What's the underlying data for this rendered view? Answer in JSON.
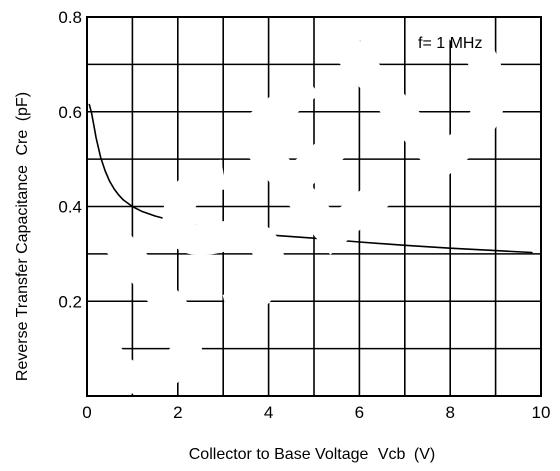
{
  "chart_data": {
    "type": "line",
    "title": "",
    "xlabel": "Collector to Base Voltage",
    "xlabel_symbol": "Vcb",
    "xlabel_unit": "(V)",
    "ylabel": "Reverse Transfer Capacitance",
    "ylabel_symbol": "Cre",
    "ylabel_unit": "(pF)",
    "xlim": [
      0,
      10
    ],
    "ylim": [
      0,
      0.8
    ],
    "grid": true,
    "x_gridlines_step": 1,
    "y_gridlines_step": 0.1,
    "x_ticks": [
      "0",
      "2",
      "4",
      "6",
      "8",
      "10"
    ],
    "x_tick_values": [
      0,
      2,
      4,
      6,
      8,
      10
    ],
    "y_ticks": [
      "0.2",
      "0.4",
      "0.6",
      "0.8"
    ],
    "y_tick_values": [
      0.2,
      0.4,
      0.6,
      0.8
    ],
    "annotations": [
      {
        "text": "f= 1 MHz"
      }
    ],
    "watermark": {
      "text": "USED",
      "color": "#ffffff"
    },
    "series": [
      {
        "color": "#000000",
        "x": [
          0.05,
          0.1,
          0.15,
          0.2,
          0.3,
          0.4,
          0.5,
          0.6,
          0.7,
          0.8,
          1.0,
          1.2,
          1.5,
          2.0,
          2.5,
          3.0,
          3.5,
          4.0,
          5.0,
          6.0,
          7.0,
          8.0,
          9.0,
          9.8
        ],
        "y": [
          0.615,
          0.598,
          0.572,
          0.545,
          0.504,
          0.475,
          0.453,
          0.437,
          0.424,
          0.414,
          0.4,
          0.39,
          0.38,
          0.367,
          0.358,
          0.352,
          0.346,
          0.34,
          0.333,
          0.325,
          0.318,
          0.312,
          0.307,
          0.303
        ]
      }
    ]
  }
}
